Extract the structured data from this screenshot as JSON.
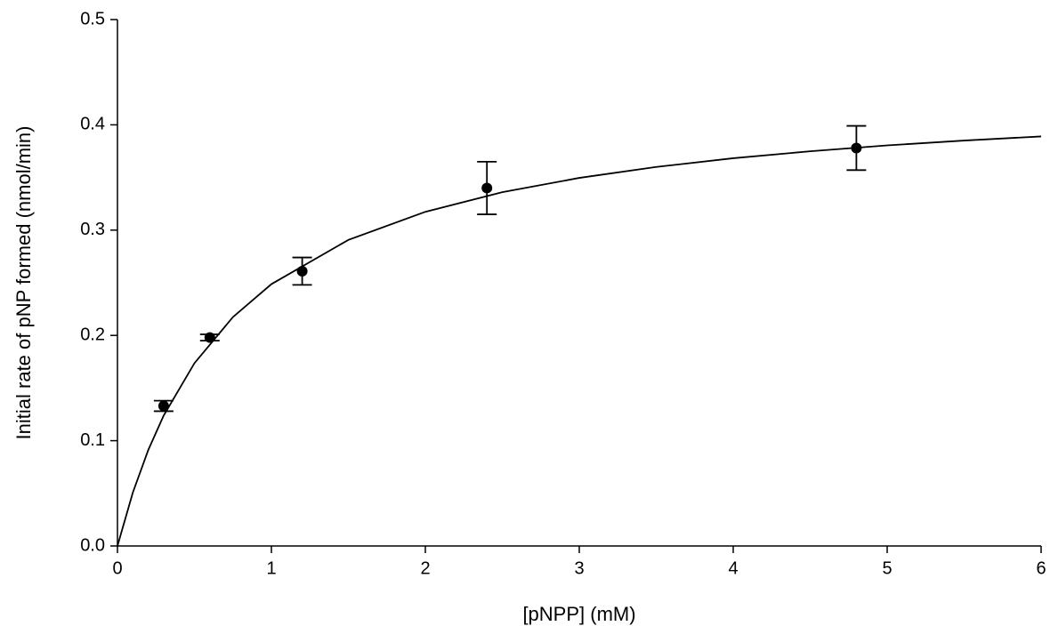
{
  "chart_data": {
    "type": "scatter",
    "xlabel": "[pNPP] (mM)",
    "ylabel": "Initial rate of pNP formed (nmol/min)",
    "xlim": [
      0,
      6
    ],
    "ylim": [
      0,
      0.5
    ],
    "xticks": [
      0,
      1,
      2,
      3,
      4,
      5,
      6
    ],
    "yticks": [
      {
        "value": 0,
        "label": "0.0"
      },
      0.1,
      0.2,
      0.3,
      0.4,
      0.5
    ],
    "series": [
      {
        "type": "scatter",
        "color": "#000000",
        "x": [
          0.3,
          0.6,
          1.2,
          2.4,
          4.8
        ],
        "values": [
          0.133,
          0.198,
          0.261,
          0.34,
          0.378
        ],
        "errors": [
          0.005,
          0.003,
          0.013,
          0.025,
          0.021
        ]
      },
      {
        "type": "line",
        "color": "#000000",
        "x": [
          0,
          0.1,
          0.2,
          0.3,
          0.5,
          0.75,
          1,
          1.5,
          2,
          2.5,
          3,
          3.5,
          4,
          4.5,
          5,
          5.5,
          6
        ],
        "values": [
          0,
          0.0508,
          0.0911,
          0.1238,
          0.1736,
          0.2174,
          0.2487,
          0.2907,
          0.3174,
          0.336,
          0.3496,
          0.36,
          0.3683,
          0.3749,
          0.3805,
          0.3851,
          0.389
        ]
      }
    ]
  }
}
